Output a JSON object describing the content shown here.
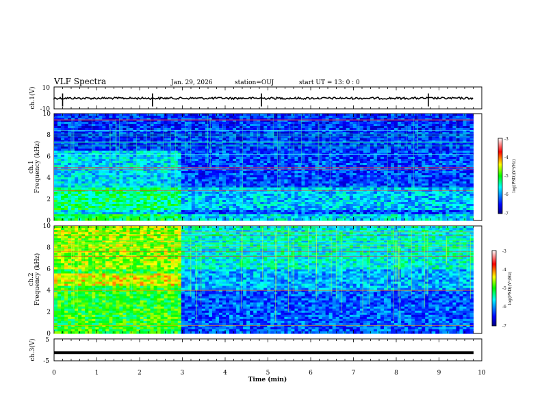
{
  "header": {
    "title": "VLF Spectra",
    "date": "Jan. 29, 2026",
    "station": "station=OUJ",
    "start_ut": "start UT =  13: 0  : 0"
  },
  "chart_data": [
    {
      "type": "line",
      "name": "ch1-waveform",
      "ylabel": "ch.1(V)",
      "ylim": [
        -10,
        10
      ],
      "yticks": [
        10,
        -10
      ],
      "baseline_value": 0,
      "xlim": [
        0,
        10
      ],
      "spikes_at_min": [
        0.2,
        2.3,
        4.85,
        8.75
      ]
    },
    {
      "type": "heatmap",
      "name": "ch1-spectrogram",
      "ylabel_channel": "ch.1",
      "ylabel": "Frequency (kHz)",
      "ylim": [
        0,
        10
      ],
      "yticks": [
        0,
        2,
        4,
        6,
        8,
        10
      ],
      "xlim": [
        0,
        10
      ],
      "data_end_min": 9.8,
      "colorbar": {
        "label": "log(PSD)(V²/Hz)",
        "range": [
          -7,
          -3
        ],
        "ticks": [
          "-3",
          "-4",
          "-5",
          "-6",
          "-7"
        ]
      }
    },
    {
      "type": "heatmap",
      "name": "ch2-spectrogram",
      "ylabel_channel": "ch.2",
      "ylabel": "Frequency (kHz)",
      "ylim": [
        0,
        10
      ],
      "yticks": [
        0,
        2,
        4,
        6,
        8,
        10
      ],
      "xlim": [
        0,
        10
      ],
      "data_end_min": 9.8,
      "colorbar": {
        "label": "log(PSD)(V²/Hz)",
        "range": [
          -7,
          -3
        ],
        "ticks": [
          "-3",
          "-4",
          "-5",
          "-6",
          "-7"
        ]
      }
    },
    {
      "type": "line",
      "name": "ch3-waveform",
      "ylabel": "ch.3(V)",
      "ylim": [
        -5,
        5
      ],
      "yticks": [
        5,
        -5
      ],
      "baseline_value": -1,
      "xlim": [
        0,
        10
      ],
      "xlabel": "Time (min)",
      "xticks": [
        "0",
        "1",
        "2",
        "3",
        "4",
        "5",
        "6",
        "7",
        "8",
        "9",
        "10"
      ]
    }
  ]
}
